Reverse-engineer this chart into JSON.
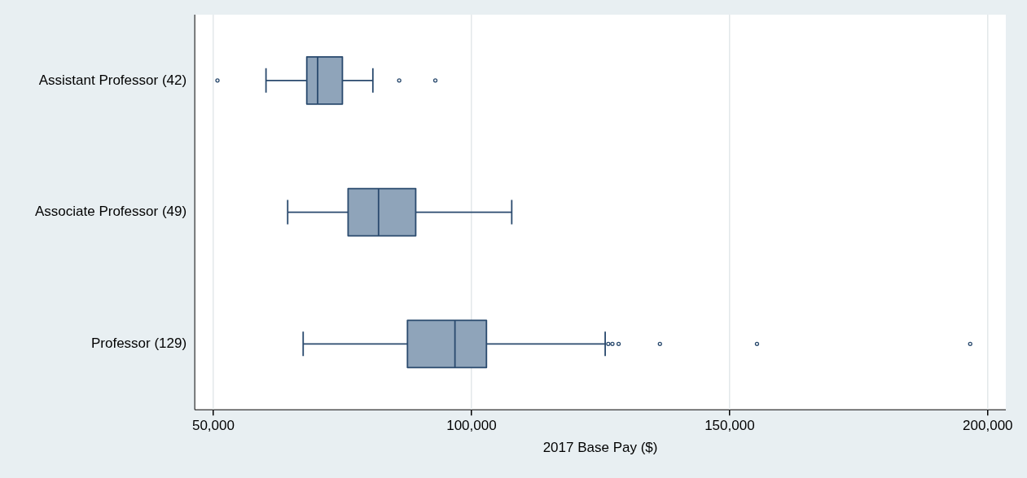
{
  "chart_data": {
    "type": "box",
    "orientation": "horizontal",
    "xlabel": "2017 Base Pay ($)",
    "categories": [
      "Assistant Professor (42)",
      "Associate Professor (49)",
      "Professor (129)"
    ],
    "boxes": [
      {
        "low": 60200,
        "q1": 68100,
        "median": 70200,
        "q3": 75000,
        "high": 80900,
        "outliers": [
          50800,
          86000,
          93000
        ]
      },
      {
        "low": 64400,
        "q1": 76100,
        "median": 82000,
        "q3": 89200,
        "high": 107800
      },
      {
        "low": 67400,
        "q1": 87600,
        "median": 96800,
        "q3": 102900,
        "high": 125900,
        "outliers": [
          126500,
          127300,
          128500,
          136500,
          155300,
          196600
        ]
      }
    ],
    "color": "#8fa4ba",
    "xlim": [
      46400,
      203500
    ],
    "xticks": [
      {
        "value": 50000,
        "label": "50,000"
      },
      {
        "value": 100000,
        "label": "100,000"
      },
      {
        "value": 150000,
        "label": "150,000"
      },
      {
        "value": 200000,
        "label": "200,000"
      }
    ],
    "grid": "x",
    "marker": "circle"
  }
}
